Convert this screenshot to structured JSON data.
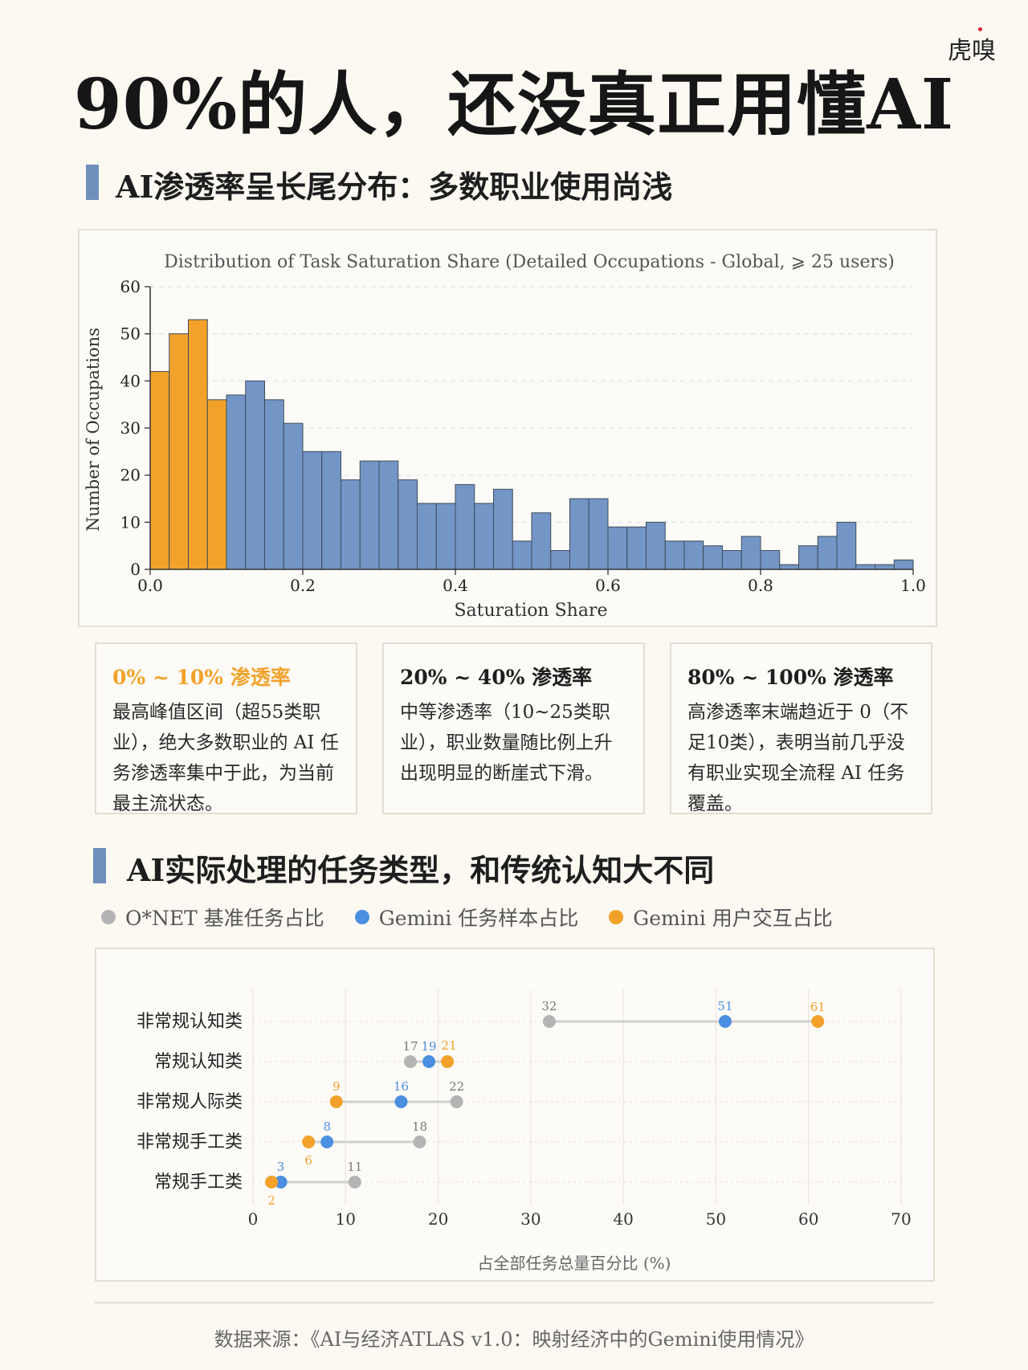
{
  "brand": "虎嗅",
  "main_title": "90%的人，还没真正用懂AI",
  "section1": {
    "title": "AI渗透率呈长尾分布：多数职业使用尚浅"
  },
  "section2": {
    "title": "AI实际处理的任务类型，和传统认知大不同"
  },
  "cards": [
    {
      "title": "0% ~ 10% 渗透率",
      "body": "最高峰值区间（超55类职业），绝大多数职业的 AI 任务渗透率集中于此，为当前最主流状态。"
    },
    {
      "title": "20% ~ 40% 渗透率",
      "body": "中等渗透率（10~25类职业），职业数量随比例上升出现明显的断崖式下滑。"
    },
    {
      "title": "80% ~ 100% 渗透率",
      "body": "高渗透率末端趋近于 0（不足10类），表明当前几乎没有职业实现全流程 AI 任务覆盖。"
    }
  ],
  "legend": [
    {
      "label": "O*NET 基准任务占比",
      "color": "#b4b4b4"
    },
    {
      "label": "Gemini 任务样本占比",
      "color": "#4a8fe0"
    },
    {
      "label": "Gemini 用户交互占比",
      "color": "#f2a22a"
    }
  ],
  "source": "数据来源：《AI与经济ATLAS v1.0：映射经济中的Gemini使用情况》",
  "chart_data": [
    {
      "type": "bar",
      "title": "Distribution of Task Saturation Share (Detailed Occupations - Global, ⩾ 25 users)",
      "xlabel": "Saturation Share",
      "ylabel": "Number of Occupations",
      "xlim": [
        0.0,
        1.0
      ],
      "ylim": [
        0,
        60
      ],
      "xticks": [
        "0.0",
        "0.2",
        "0.4",
        "0.6",
        "0.8",
        "1.0"
      ],
      "yticks": [
        "0",
        "10",
        "20",
        "30",
        "40",
        "50",
        "60"
      ],
      "grid": true,
      "bin_width": 0.025,
      "values": [
        42,
        50,
        53,
        36,
        37,
        40,
        36,
        31,
        25,
        25,
        19,
        23,
        23,
        19,
        14,
        14,
        18,
        14,
        17,
        6,
        12,
        4,
        15,
        15,
        9,
        9,
        10,
        6,
        6,
        5,
        4,
        7,
        4,
        1,
        5,
        7,
        10,
        1,
        1,
        2
      ],
      "highlight_bins": 4,
      "colors": {
        "highlight": "#f2a22a",
        "normal": "#7396c6"
      }
    },
    {
      "type": "scatter",
      "xlabel": "占全部任务总量百分比 (%)",
      "xlim": [
        0,
        70
      ],
      "xticks": [
        "0",
        "10",
        "20",
        "30",
        "40",
        "50",
        "60",
        "70"
      ],
      "categories": [
        "非常规认知类",
        "常规认知类",
        "非常规人际类",
        "非常规手工类",
        "常规手工类"
      ],
      "series": [
        {
          "name": "O*NET 基准任务占比",
          "values": [
            32,
            17,
            22,
            18,
            11
          ],
          "color": "#b4b4b4"
        },
        {
          "name": "Gemini 任务样本占比",
          "values": [
            51,
            19,
            16,
            8,
            3
          ],
          "color": "#4a8fe0"
        },
        {
          "name": "Gemini 用户交互占比",
          "values": [
            61,
            21,
            9,
            6,
            2
          ],
          "color": "#f2a22a"
        }
      ]
    }
  ]
}
